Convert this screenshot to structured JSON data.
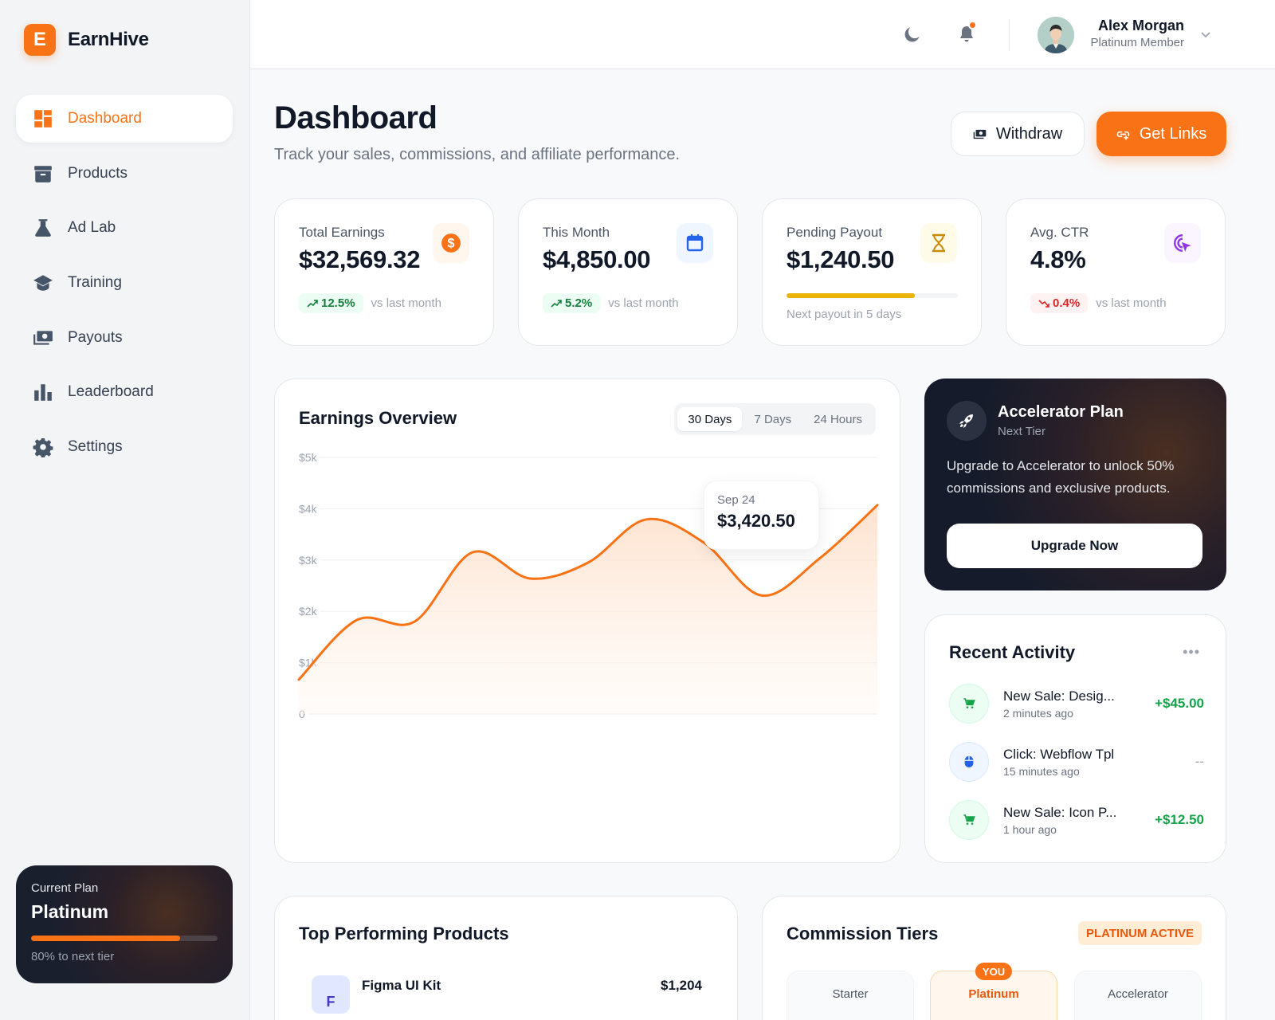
{
  "brand": {
    "logo_letter": "E",
    "name": "EarnHive"
  },
  "sidebar": {
    "items": [
      {
        "label": "Dashboard",
        "icon": "dashboard-icon",
        "active": true
      },
      {
        "label": "Products",
        "icon": "archive-box-icon"
      },
      {
        "label": "Ad Lab",
        "icon": "flask-icon"
      },
      {
        "label": "Training",
        "icon": "graduation-cap-icon"
      },
      {
        "label": "Payouts",
        "icon": "money-stack-icon"
      },
      {
        "label": "Leaderboard",
        "icon": "bar-chart-icon"
      },
      {
        "label": "Settings",
        "icon": "gear-icon"
      }
    ],
    "plan": {
      "label": "Current Plan",
      "name": "Platinum",
      "progress_pct": 80,
      "progress_text": "80% to next tier"
    }
  },
  "header": {
    "theme_icon": "moon-icon",
    "notification_icon": "bell-icon",
    "user": {
      "name": "Alex Morgan",
      "role": "Platinum Member"
    }
  },
  "page": {
    "title": "Dashboard",
    "subtitle": "Track your sales, commissions, and affiliate performance.",
    "actions": {
      "withdraw": "Withdraw",
      "get_links": "Get Links"
    }
  },
  "stats": [
    {
      "label": "Total Earnings",
      "value": "$32,569.32",
      "change": "12.5%",
      "trend": "up",
      "note": "vs last month",
      "icon": "dollar-icon",
      "accent": "#f97316"
    },
    {
      "label": "This Month",
      "value": "$4,850.00",
      "change": "5.2%",
      "trend": "up",
      "note": "vs last month",
      "icon": "calendar-icon",
      "accent": "#2563eb"
    },
    {
      "label": "Pending Payout",
      "value": "$1,240.50",
      "progress_pct": 75,
      "note": "Next payout in 5 days",
      "icon": "hourglass-icon",
      "accent": "#ca8a04"
    },
    {
      "label": "Avg. CTR",
      "value": "4.8%",
      "change": "0.4%",
      "trend": "down",
      "note": "vs last month",
      "icon": "cursor-click-icon",
      "accent": "#9333ea"
    }
  ],
  "earnings": {
    "title": "Earnings Overview",
    "ranges": [
      "30 Days",
      "7 Days",
      "24 Hours"
    ],
    "active_range": "30 Days",
    "tooltip": {
      "date": "Sep 24",
      "value": "$3,420.50"
    }
  },
  "chart_data": {
    "type": "area",
    "title": "Earnings Overview",
    "xlabel": "",
    "ylabel": "",
    "y_ticks": [
      "0",
      "$1k",
      "$2k",
      "$3k",
      "$4k",
      "$5k"
    ],
    "ylim": [
      0,
      5000
    ],
    "grid": true,
    "legend": "none",
    "series": [
      {
        "name": "Earnings",
        "color": "#f97316",
        "x": [
          0,
          1,
          2,
          3,
          4,
          5,
          6,
          7,
          8,
          9,
          10
        ],
        "values": [
          670,
          1830,
          1800,
          3150,
          2640,
          2950,
          3790,
          3340,
          2310,
          3030,
          4070
        ]
      }
    ],
    "annotations": [
      {
        "label": "Sep 24",
        "value": 3420.5
      }
    ]
  },
  "accelerator": {
    "title": "Accelerator Plan",
    "subtitle": "Next Tier",
    "description": "Upgrade to Accelerator to unlock 50% commissions and exclusive products.",
    "button": "Upgrade Now"
  },
  "activity": {
    "title": "Recent Activity",
    "more": "•••",
    "items": [
      {
        "name": "New Sale: Desig...",
        "time": "2 minutes ago",
        "amount": "+$45.00",
        "type": "sale",
        "icon": "cart-icon"
      },
      {
        "name": "Click: Webflow Tpl",
        "time": "15 minutes ago",
        "amount": "--",
        "type": "click",
        "icon": "mouse-icon"
      },
      {
        "name": "New Sale: Icon P...",
        "time": "1 hour ago",
        "amount": "+$12.50",
        "type": "sale",
        "icon": "cart-icon"
      }
    ]
  },
  "products": {
    "title": "Top Performing Products",
    "items": [
      {
        "logo": "F",
        "name": "Figma UI Kit",
        "value": "$1,204"
      }
    ]
  },
  "tiers": {
    "title": "Commission Tiers",
    "badge": "PLATINUM ACTIVE",
    "you_label": "YOU",
    "items": [
      {
        "name": "Starter",
        "current": false
      },
      {
        "name": "Platinum",
        "current": true
      },
      {
        "name": "Accelerator",
        "current": false
      }
    ]
  }
}
